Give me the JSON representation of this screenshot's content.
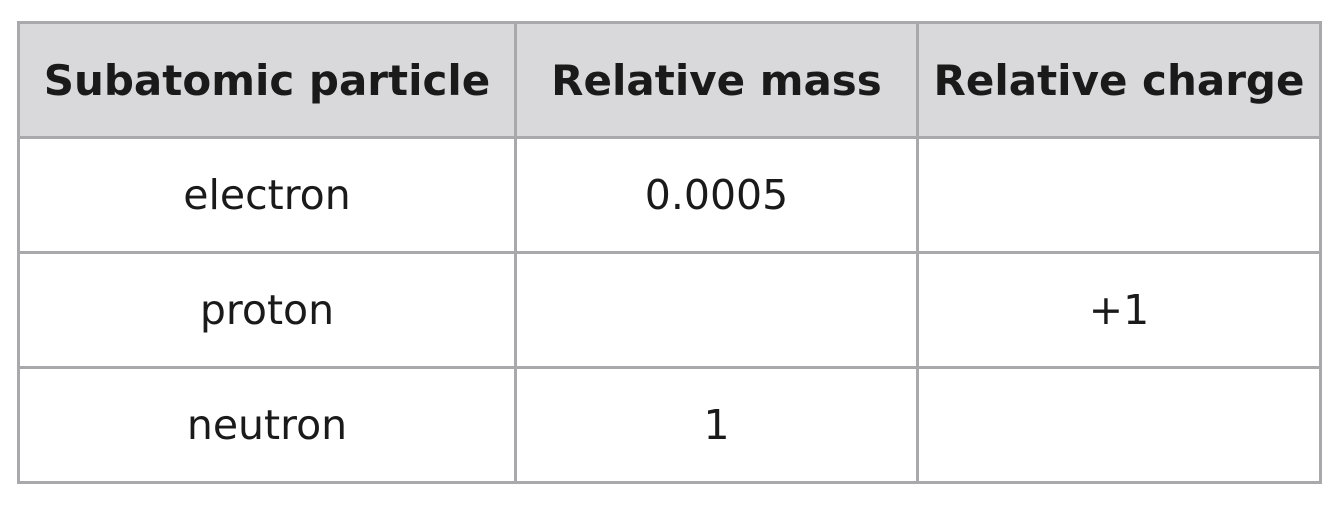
{
  "table": {
    "header": [
      "Subatomic particle",
      "Relative mass",
      "Relative charge"
    ],
    "rows": [
      [
        "electron",
        "0.0005",
        null
      ],
      [
        "proton",
        null,
        "+1"
      ],
      [
        "neutron",
        "1",
        null
      ]
    ]
  }
}
